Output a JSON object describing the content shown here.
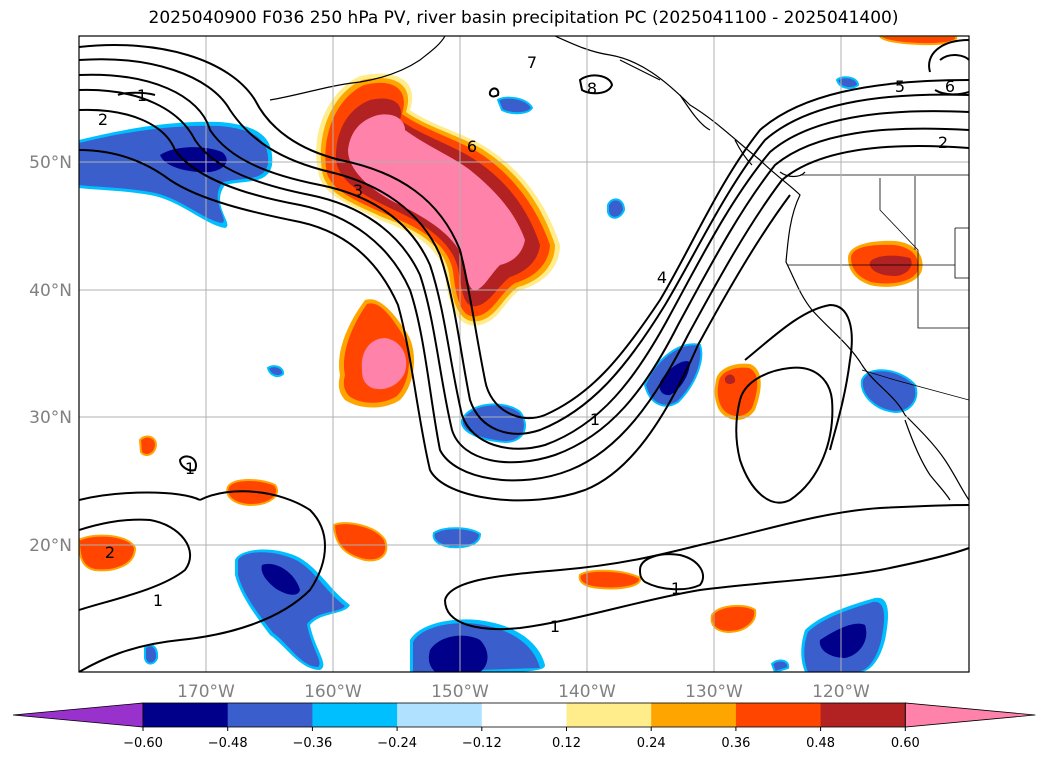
{
  "title": "2025040900 F036 250 hPa PV, river basin precipitation PC (2025041100 - 2025041400)",
  "chart_data": {
    "type": "heatmap",
    "projection": "plate carree map",
    "lon_range": [
      -180,
      -110
    ],
    "lat_range": [
      10,
      60
    ],
    "grid": true,
    "x_ticks": [
      {
        "lon": -170,
        "label": "170°W"
      },
      {
        "lon": -160,
        "label": "160°W"
      },
      {
        "lon": -150,
        "label": "150°W"
      },
      {
        "lon": -140,
        "label": "140°W"
      },
      {
        "lon": -130,
        "label": "130°W"
      },
      {
        "lon": -120,
        "label": "120°W"
      }
    ],
    "y_ticks": [
      {
        "lat": 20,
        "label": "20°N"
      },
      {
        "lat": 30,
        "label": "30°N"
      },
      {
        "lat": 40,
        "label": "40°N"
      },
      {
        "lat": 50,
        "label": "50°N"
      }
    ],
    "colorbar": {
      "levels": [
        -0.6,
        -0.48,
        -0.36,
        -0.24,
        -0.12,
        0.12,
        0.24,
        0.36,
        0.48,
        0.6
      ],
      "tick_labels": [
        "−0.60",
        "−0.48",
        "−0.36",
        "−0.24",
        "−0.12",
        "0.12",
        "0.24",
        "0.36",
        "0.48",
        "0.60"
      ],
      "colors": [
        "#9932cc",
        "#00008b",
        "#3a5fcd",
        "#00bfff",
        "#b0e2ff",
        "#ffffff",
        "#ffec8b",
        "#ffa500",
        "#ff4500",
        "#b22222",
        "#ff82ab"
      ],
      "extend": "both"
    },
    "pv_contour_labels": [
      "1",
      "2",
      "3",
      "4",
      "5",
      "6",
      "7",
      "8",
      "1",
      "2",
      "1",
      "1",
      "1",
      "1",
      "6",
      "2",
      "1"
    ]
  }
}
